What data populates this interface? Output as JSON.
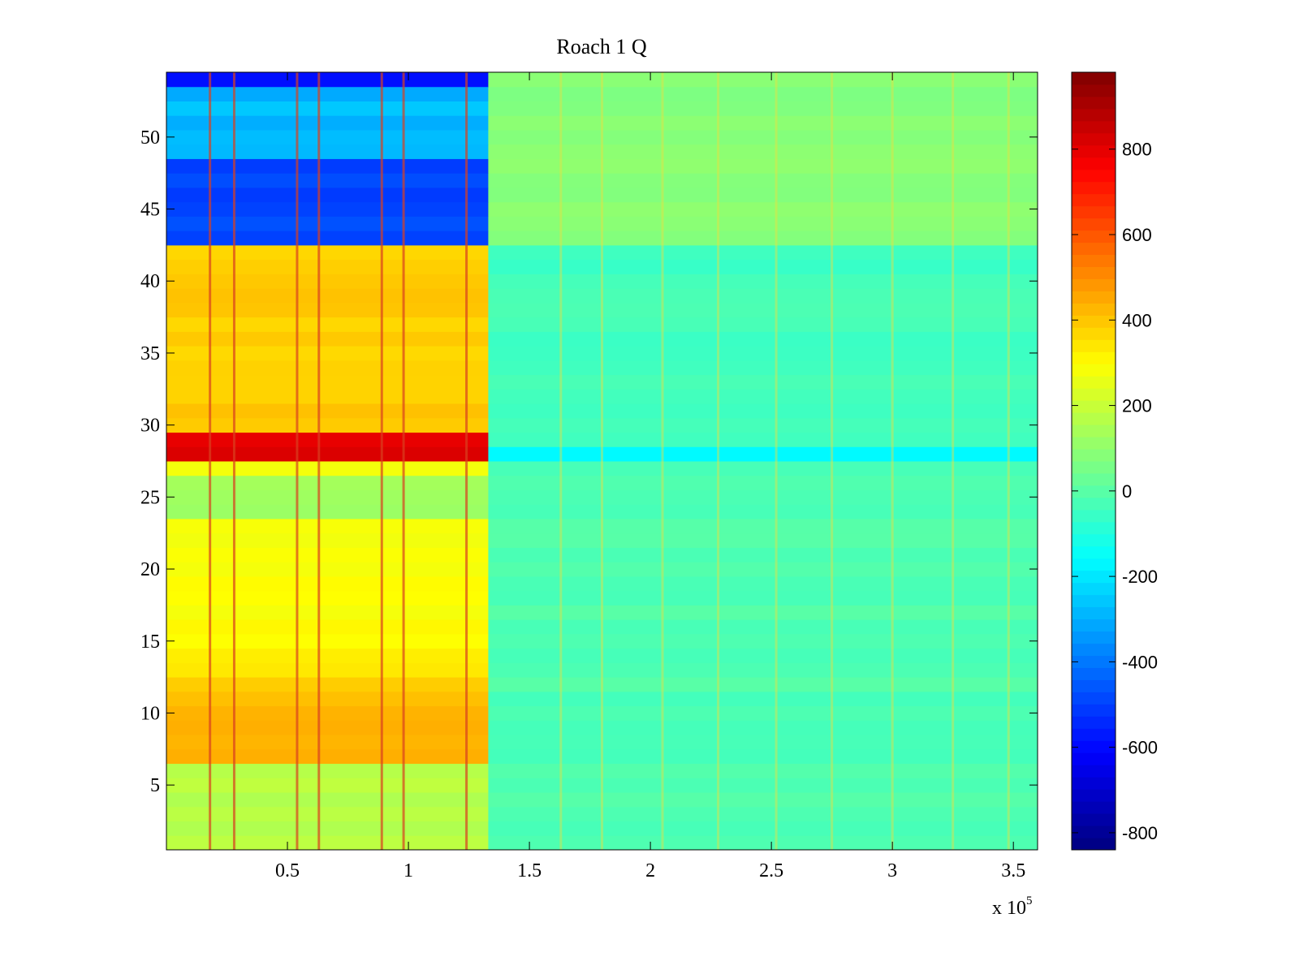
{
  "chart_data": {
    "type": "heatmap",
    "title": "Roach 1 Q",
    "xlabel": "",
    "ylabel": "",
    "x_multiplier_label": "x 10",
    "x_multiplier_exponent": "5",
    "xlim": [
      0,
      3.6
    ],
    "ylim": [
      0.5,
      54.5
    ],
    "x_ticks": [
      0.5,
      1,
      1.5,
      2,
      2.5,
      3,
      3.5
    ],
    "x_tick_labels": [
      "0.5",
      "1",
      "1.5",
      "2",
      "2.5",
      "3",
      "3.5"
    ],
    "y_ticks": [
      5,
      10,
      15,
      20,
      25,
      30,
      35,
      40,
      45,
      50
    ],
    "y_tick_labels": [
      "5",
      "10",
      "15",
      "20",
      "25",
      "30",
      "35",
      "40",
      "45",
      "50"
    ],
    "colorbar": {
      "colormap": "jet",
      "clim": [
        -840,
        980
      ],
      "ticks": [
        -800,
        -600,
        -400,
        -200,
        0,
        200,
        400,
        600,
        800
      ],
      "tick_labels": [
        "-800",
        "-600",
        "-400",
        "-200",
        "0",
        "200",
        "400",
        "600",
        "800"
      ]
    },
    "row_values_before_1_33e5": [
      {
        "rows": [
          1,
          6
        ],
        "value": 180
      },
      {
        "rows": [
          7,
          11
        ],
        "value": 430
      },
      {
        "rows": [
          12,
          13
        ],
        "value": 360
      },
      {
        "rows": [
          14,
          23
        ],
        "value": 300
      },
      {
        "rows": [
          24,
          26
        ],
        "value": 120
      },
      {
        "rows": [
          27,
          27
        ],
        "value": 300
      },
      {
        "rows": [
          28,
          29
        ],
        "value": 820
      },
      {
        "rows": [
          30,
          42
        ],
        "value": 380
      },
      {
        "rows": [
          43,
          48
        ],
        "value": -480
      },
      {
        "rows": [
          49,
          53
        ],
        "value": -280
      },
      {
        "rows": [
          54,
          54
        ],
        "value": -600
      }
    ],
    "row_values_after_1_33e5": [
      {
        "rows": [
          1,
          27
        ],
        "value": -20
      },
      {
        "rows": [
          28,
          28
        ],
        "value": -150
      },
      {
        "rows": [
          29,
          42
        ],
        "value": -40
      },
      {
        "rows": [
          43,
          54
        ],
        "value": 80
      }
    ],
    "vertical_stripe_positions": [
      0.18,
      0.28,
      0.54,
      0.63,
      0.89,
      0.98,
      1.24,
      1.63,
      1.8,
      2.05,
      2.28,
      2.52,
      2.75,
      3.0,
      3.25,
      3.48
    ]
  }
}
